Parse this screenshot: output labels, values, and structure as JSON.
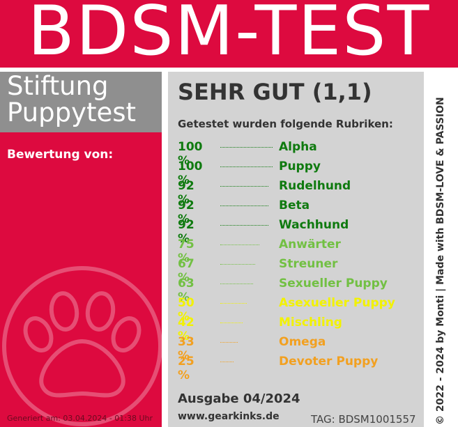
{
  "header": {
    "title": "BDSM-TEST"
  },
  "sidebar": {
    "organization": "Stiftung\nPuppytest",
    "rating_label": "Bewertung von:",
    "generated": "Generiert am: 03.04.2024 - 01:38 Uhr"
  },
  "result": {
    "grade": "SEHR GUT (1,1)",
    "subtitle": "Getestet wurden folgende Rubriken:",
    "rows": [
      {
        "percent": "100 %",
        "name": "Alpha",
        "color": "#0f7a0f"
      },
      {
        "percent": "100 %",
        "name": "Puppy",
        "color": "#0f7a0f"
      },
      {
        "percent": "92 %",
        "name": "Rudelhund",
        "color": "#0f7a0f"
      },
      {
        "percent": "92 %",
        "name": "Beta",
        "color": "#0f7a0f"
      },
      {
        "percent": "92 %",
        "name": "Wachhund",
        "color": "#0f7a0f"
      },
      {
        "percent": "75 %",
        "name": "Anwärter",
        "color": "#72c043"
      },
      {
        "percent": "67 %",
        "name": "Streuner",
        "color": "#72c043"
      },
      {
        "percent": "63 %",
        "name": "Sexueller Puppy",
        "color": "#72c043"
      },
      {
        "percent": "50 %",
        "name": "Asexueller Puppy",
        "color": "#f2f200"
      },
      {
        "percent": "42 %",
        "name": "Mischling",
        "color": "#f2f200"
      },
      {
        "percent": "33 %",
        "name": "Omega",
        "color": "#f2a020"
      },
      {
        "percent": "25 %",
        "name": "Devoter Puppy",
        "color": "#f2a020"
      }
    ],
    "issue": "Ausgabe 04/2024",
    "url": "www.gearkinks.de",
    "tag": "TAG: BDSM1001557"
  },
  "footer": {
    "copyright": "© 2022 - 2024 by Monti | Made with BDSM-LOVE & PASSION"
  }
}
